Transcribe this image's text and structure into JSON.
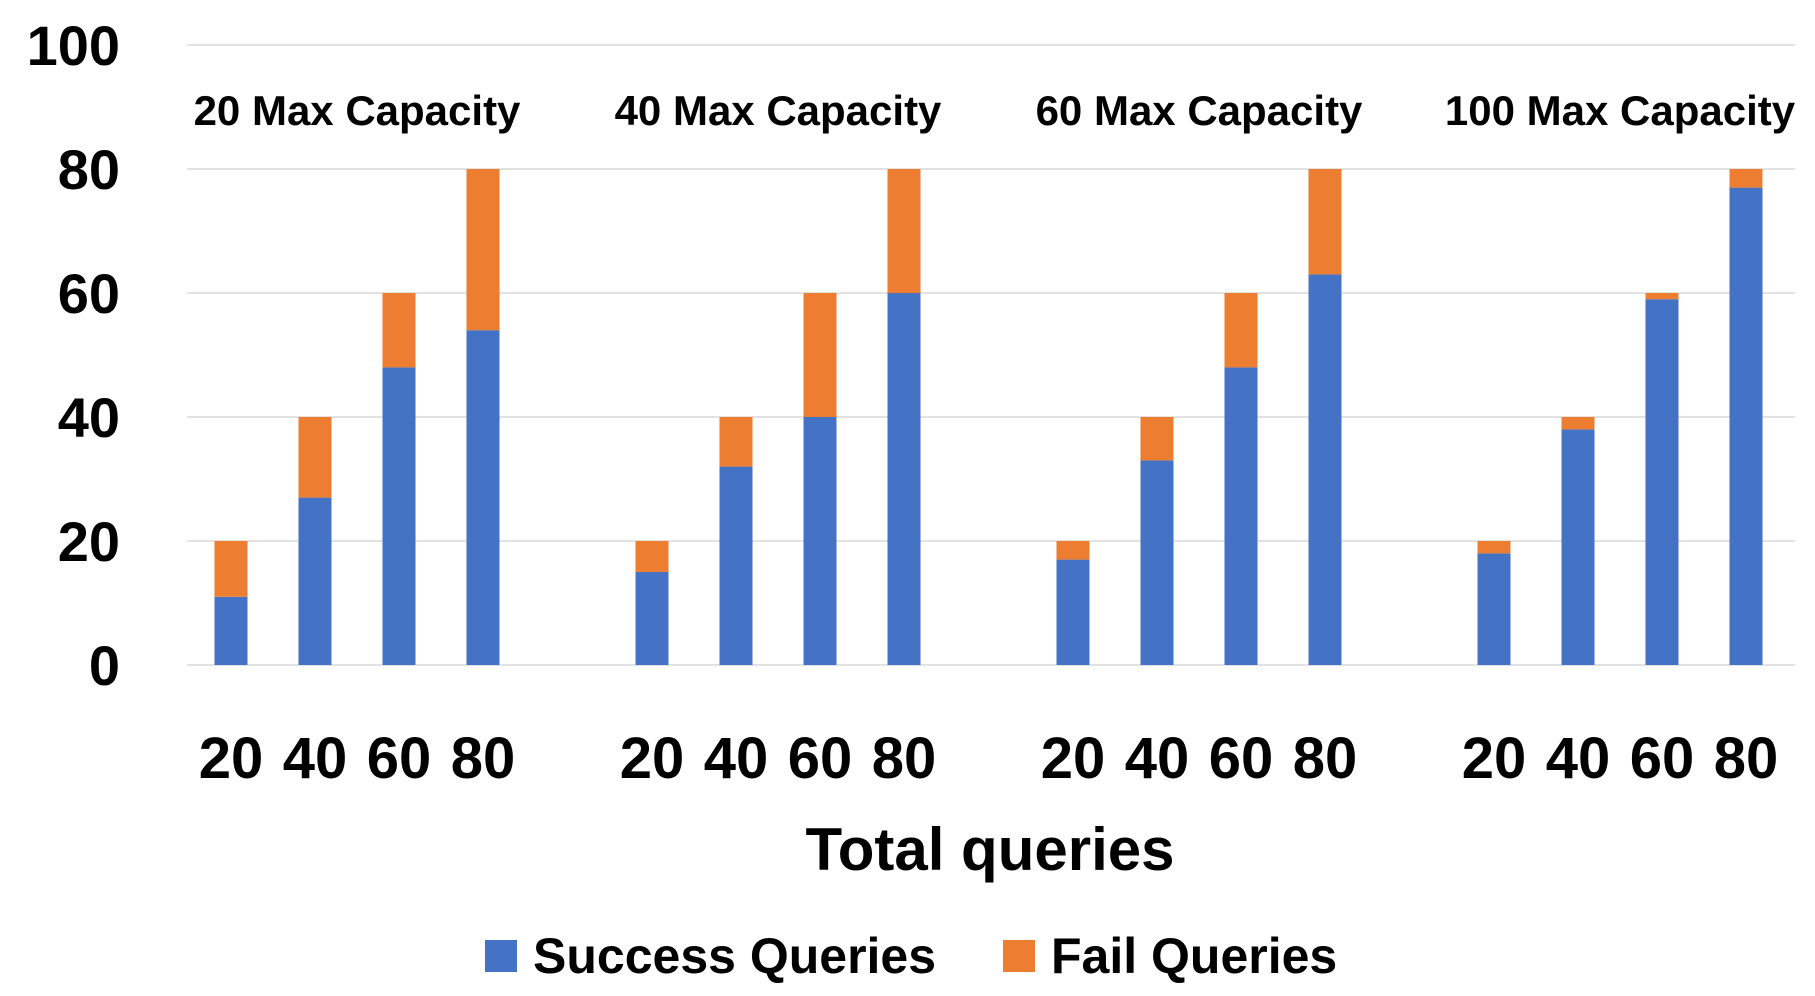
{
  "chart_data": {
    "type": "bar",
    "stacked": true,
    "title": "",
    "xlabel": "Total queries",
    "ylabel": "",
    "ylim": [
      0,
      100
    ],
    "yticks": [
      "0",
      "20",
      "40",
      "60",
      "80",
      "100"
    ],
    "groups": [
      "20 Max Capacity",
      "40 Max Capacity",
      "60 Max Capacity",
      "100 Max Capacity"
    ],
    "categories": [
      "20",
      "40",
      "60",
      "80"
    ],
    "series": [
      {
        "name": "Success Queries",
        "color": "#4472C4",
        "values": [
          [
            11,
            27,
            48,
            54
          ],
          [
            15,
            32,
            40,
            60
          ],
          [
            17,
            33,
            48,
            63
          ],
          [
            18,
            38,
            59,
            77
          ]
        ]
      },
      {
        "name": "Fail Queries",
        "color": "#ED7D31",
        "values": [
          [
            9,
            13,
            12,
            26
          ],
          [
            5,
            8,
            20,
            20
          ],
          [
            3,
            7,
            12,
            17
          ],
          [
            2,
            2,
            1,
            3
          ]
        ]
      }
    ],
    "legend_position": "bottom",
    "grid": true
  }
}
